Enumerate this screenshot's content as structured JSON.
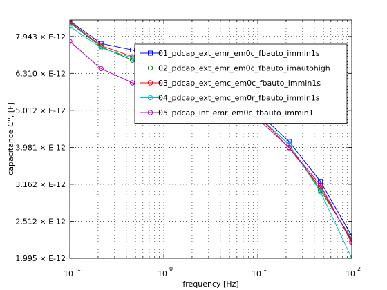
{
  "chart_data": {
    "type": "line",
    "title": "",
    "xlabel": "frequency [Hz]",
    "ylabel": "capacitance C'', [F]",
    "x_scale": "log",
    "y_scale": "log",
    "xlim": [
      0.1,
      100
    ],
    "ylim": [
      1.995e-12,
      8.8e-12
    ],
    "grid": true,
    "legend_position": "top-right",
    "x_ticks": [
      {
        "value": 0.1,
        "base": "10",
        "exp": "-1"
      },
      {
        "value": 1,
        "base": "10",
        "exp": "0"
      },
      {
        "value": 10,
        "base": "10",
        "exp": "1"
      },
      {
        "value": 100,
        "base": "10",
        "exp": "2"
      }
    ],
    "y_ticks": [
      {
        "value": 1.995e-12,
        "label": "1.995 × E-12"
      },
      {
        "value": 2.512e-12,
        "label": "2.512 × E-12"
      },
      {
        "value": 3.162e-12,
        "label": "3.162 × E-12"
      },
      {
        "value": 3.981e-12,
        "label": "3.981 × E-12"
      },
      {
        "value": 5.012e-12,
        "label": "5.012 × E-12"
      },
      {
        "value": 6.31e-12,
        "label": "6.310 × E-12"
      },
      {
        "value": 7.943e-12,
        "label": "7.943 × E-12"
      }
    ],
    "x": [
      0.1,
      0.215,
      0.464,
      1.0,
      2.15,
      4.64,
      10.0,
      21.5,
      46.4,
      100.0
    ],
    "series": [
      {
        "name": "01_pdcap_ext_emr_em0c_fbauto_immin1s",
        "color": "#0000ff",
        "marker": "square",
        "values": [
          8.75e-12,
          7.6e-12,
          7.3e-12,
          6.8e-12,
          6.15e-12,
          5.55e-12,
          4.95e-12,
          4.13e-12,
          3.22e-12,
          2.29e-12
        ]
      },
      {
        "name": "02_pdcap_ext_emr_em0c_fbauto_imautohigh",
        "color": "#008000",
        "marker": "circle",
        "values": [
          8.65e-12,
          7.45e-12,
          6.85e-12,
          6.5e-12,
          6e-12,
          5.45e-12,
          4.85e-12,
          4.05e-12,
          3.05e-12,
          2.25e-12
        ]
      },
      {
        "name": "03_pdcap_ext_emc_em0c_fbauto_immin1s",
        "color": "#ff0000",
        "marker": "circle",
        "values": [
          8.7e-12,
          7.5e-12,
          7e-12,
          6.6e-12,
          6.05e-12,
          5.45e-12,
          4.85e-12,
          3.97e-12,
          3.1e-12,
          2.22e-12
        ]
      },
      {
        "name": "04_pdcap_ext_emc_em0r_fbauto_immin1s",
        "color": "#00bfbf",
        "marker": "circle",
        "values": [
          8.45e-12,
          7.4e-12,
          6.95e-12,
          6.55e-12,
          6e-12,
          5.45e-12,
          4.85e-12,
          4.05e-12,
          3.02e-12,
          1.995e-12
        ]
      },
      {
        "name": "05_pdcap_int_emr_em0c_fbauto_immin1",
        "color": "#bf00bf",
        "marker": "circle",
        "values": [
          7.7e-12,
          6.5e-12,
          5.95e-12,
          5.75e-12,
          5.5e-12,
          5.15e-12,
          4.75e-12,
          3.98e-12,
          3.15e-12,
          2.2e-12
        ]
      }
    ]
  }
}
